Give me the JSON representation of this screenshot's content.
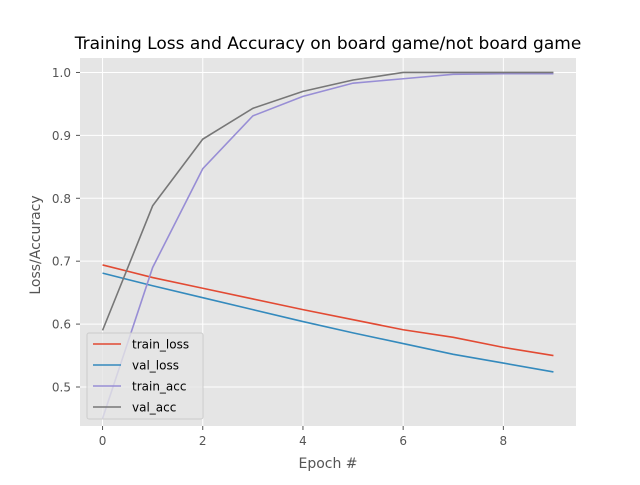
{
  "chart_data": {
    "type": "line",
    "title": "Training Loss and Accuracy on board game/not board game",
    "xlabel": "Epoch #",
    "ylabel": "Loss/Accuracy",
    "x": [
      0,
      1,
      2,
      3,
      4,
      5,
      6,
      7,
      8,
      9
    ],
    "xlim": [
      -0.45,
      9.45
    ],
    "ylim": [
      0.438,
      1.023
    ],
    "xticks": [
      0,
      2,
      4,
      6,
      8
    ],
    "yticks": [
      0.5,
      0.6,
      0.7,
      0.8,
      0.9,
      1.0
    ],
    "xtick_labels": [
      "0",
      "2",
      "4",
      "6",
      "8"
    ],
    "ytick_labels": [
      "0.5",
      "0.6",
      "0.7",
      "0.8",
      "0.9",
      "1.0"
    ],
    "grid": true,
    "legend_position": "lower-left",
    "background_color": "#e5e5e5",
    "series": [
      {
        "name": "train_loss",
        "color": "#e24a33",
        "values": [
          0.694,
          0.674,
          0.657,
          0.64,
          0.623,
          0.607,
          0.591,
          0.579,
          0.563,
          0.55
        ]
      },
      {
        "name": "val_loss",
        "color": "#348abd",
        "values": [
          0.681,
          0.661,
          0.642,
          0.623,
          0.604,
          0.586,
          0.569,
          0.552,
          0.538,
          0.524
        ]
      },
      {
        "name": "train_acc",
        "color": "#988ed5",
        "values": [
          0.45,
          0.69,
          0.847,
          0.931,
          0.962,
          0.983,
          0.99,
          0.997,
          0.998,
          0.998
        ]
      },
      {
        "name": "val_acc",
        "color": "#777777",
        "values": [
          0.59,
          0.788,
          0.894,
          0.943,
          0.97,
          0.988,
          1.0,
          1.0,
          1.0,
          1.0
        ]
      }
    ]
  }
}
